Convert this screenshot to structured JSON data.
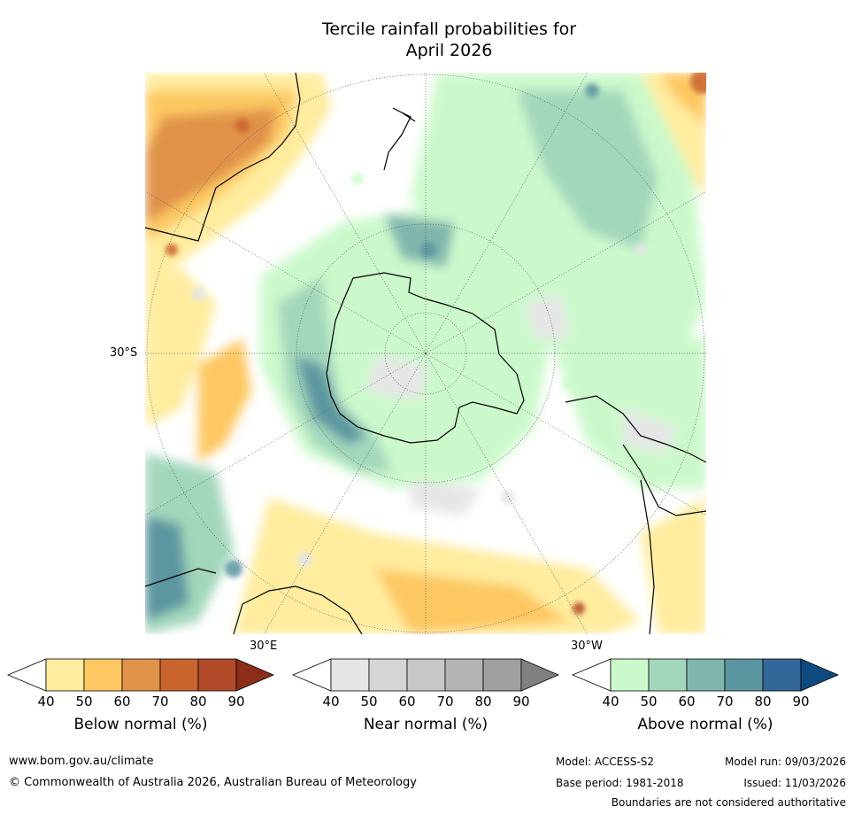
{
  "title": {
    "line1": "Tercile rainfall probabilities for",
    "line2": "April 2026"
  },
  "map": {
    "projection": "South polar stereographic",
    "lat_label": "30°S",
    "lon_label_east": "30°E",
    "lon_label_west": "30°W"
  },
  "colorbars": [
    {
      "label": "Below normal (%)",
      "ticks": [
        "40",
        "50",
        "60",
        "70",
        "80",
        "90"
      ],
      "colors": [
        "#ffffff",
        "#ffec9e",
        "#fdc862",
        "#e0924a",
        "#c9642f",
        "#b04a28",
        "#8c2d1a"
      ]
    },
    {
      "label": "Near normal (%)",
      "ticks": [
        "40",
        "50",
        "60",
        "70",
        "80",
        "90"
      ],
      "colors": [
        "#ffffff",
        "#e6e6e6",
        "#d6d6d6",
        "#c8c8c8",
        "#b4b4b4",
        "#a0a0a0",
        "#808080"
      ]
    },
    {
      "label": "Above normal (%)",
      "ticks": [
        "40",
        "50",
        "60",
        "70",
        "80",
        "90"
      ],
      "colors": [
        "#ffffff",
        "#ccf9cc",
        "#a3d7bc",
        "#80b6ad",
        "#5b96a0",
        "#336699",
        "#0e4a80"
      ]
    }
  ],
  "footer": {
    "url": "www.bom.gov.au/climate",
    "copyright": "© Commonwealth of Australia 2026, Australian Bureau of Meteorology",
    "model": "Model: ACCESS-S2",
    "base_period": "Base period: 1981-2018",
    "model_run": "Model run: 09/03/2026",
    "issued": "Issued: 11/03/2026",
    "disclaimer": "Boundaries are not considered authoritative"
  }
}
